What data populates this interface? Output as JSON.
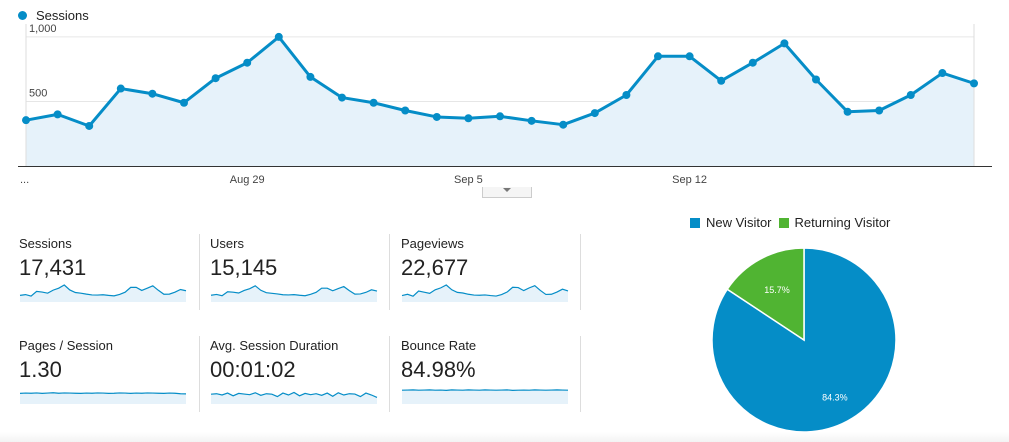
{
  "chart_data": [
    {
      "type": "area",
      "legend": "Sessions",
      "series_color": "#058dc7",
      "x_labels": [
        "...",
        "Aug 29",
        "Sep 5",
        "Sep 12"
      ],
      "y_ticks": [
        500,
        1000
      ],
      "y_tick_labels": [
        "500",
        "1,000"
      ],
      "ylim": [
        0,
        1100
      ],
      "values": [
        355,
        400,
        310,
        600,
        560,
        490,
        680,
        800,
        1000,
        690,
        530,
        490,
        430,
        380,
        370,
        385,
        350,
        320,
        410,
        550,
        850,
        850,
        660,
        800,
        950,
        670,
        420,
        430,
        550,
        720,
        640
      ],
      "grid": "horizontal"
    },
    {
      "type": "pie",
      "legend_position": "top",
      "slices": [
        {
          "name": "New Visitor",
          "value": 84.3,
          "label": "84.3%",
          "color": "#058dc7"
        },
        {
          "name": "Returning Visitor",
          "value": 15.7,
          "label": "15.7%",
          "color": "#50b432"
        }
      ]
    }
  ],
  "metrics": [
    {
      "label": "Sessions",
      "value": "17,431",
      "spark": [
        35,
        40,
        31,
        60,
        56,
        49,
        68,
        80,
        100,
        69,
        53,
        49,
        43,
        38,
        37,
        39,
        35,
        32,
        41,
        55,
        85,
        85,
        66,
        80,
        95,
        67,
        42,
        43,
        55,
        72,
        64
      ]
    },
    {
      "label": "Users",
      "value": "15,145",
      "spark": [
        36,
        41,
        33,
        58,
        55,
        50,
        66,
        77,
        95,
        67,
        52,
        48,
        44,
        39,
        38,
        40,
        36,
        33,
        42,
        54,
        80,
        80,
        64,
        78,
        90,
        65,
        43,
        44,
        54,
        70,
        62
      ]
    },
    {
      "label": "Pageviews",
      "value": "22,677",
      "spark": [
        34,
        42,
        30,
        62,
        55,
        48,
        70,
        82,
        100,
        70,
        54,
        50,
        42,
        37,
        36,
        38,
        34,
        31,
        40,
        56,
        86,
        84,
        65,
        82,
        96,
        66,
        41,
        42,
        56,
        74,
        63
      ]
    },
    {
      "label": "Pages / Session",
      "value": "1.30",
      "spark": [
        60,
        62,
        61,
        63,
        60,
        62,
        64,
        61,
        63,
        62,
        61,
        60,
        62,
        61,
        63,
        62,
        60,
        61,
        63,
        62,
        60,
        62,
        61,
        63,
        62,
        61,
        60,
        62,
        61,
        58,
        57
      ]
    },
    {
      "label": "Avg. Session Duration",
      "value": "00:01:02",
      "spark": [
        55,
        58,
        50,
        62,
        45,
        60,
        56,
        52,
        64,
        48,
        58,
        55,
        40,
        62,
        50,
        66,
        45,
        60,
        52,
        58,
        48,
        62,
        42,
        64,
        50,
        58,
        56,
        40,
        62,
        50,
        35
      ]
    },
    {
      "label": "Bounce Rate",
      "value": "84.98%",
      "spark": [
        80,
        81,
        82,
        80,
        81,
        82,
        80,
        81,
        79,
        82,
        81,
        80,
        82,
        81,
        80,
        82,
        81,
        80,
        81,
        82,
        79,
        80,
        81,
        80,
        82,
        81,
        80,
        81,
        82,
        81,
        80
      ]
    }
  ]
}
